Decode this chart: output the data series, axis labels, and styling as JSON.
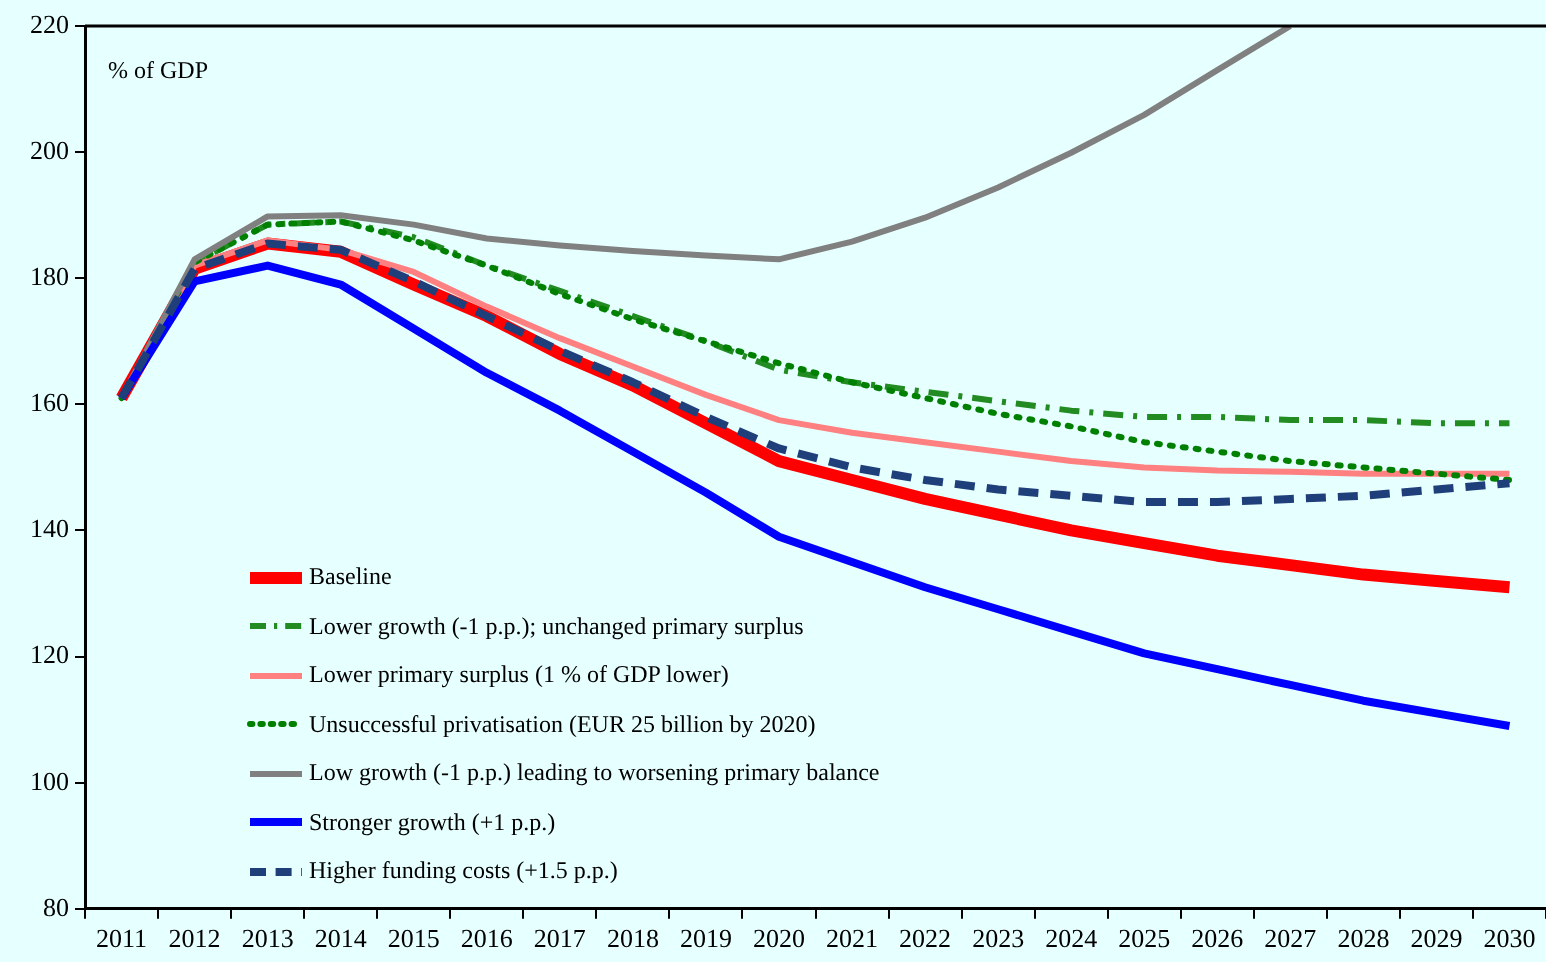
{
  "chart_data": {
    "type": "line",
    "ylabel": "% of GDP",
    "categories": [
      "2011",
      "2012",
      "2013",
      "2014",
      "2015",
      "2016",
      "2017",
      "2018",
      "2019",
      "2020",
      "2021",
      "2022",
      "2023",
      "2024",
      "2025",
      "2026",
      "2027",
      "2028",
      "2029",
      "2030"
    ],
    "ylim": [
      80,
      220
    ],
    "yticks": [
      80,
      100,
      120,
      140,
      160,
      180,
      200,
      220
    ],
    "grid": false,
    "legend": "bottom left",
    "marker": "none",
    "series": [
      {
        "name": "Baseline",
        "color": "#ff0000",
        "line_style": "solid",
        "values": [
          161,
          181.5,
          185.5,
          184.2,
          179,
          174,
          168,
          163,
          157,
          151,
          148,
          145,
          142.5,
          140,
          138,
          136,
          134.5,
          133,
          132,
          131
        ]
      },
      {
        "name": "Lower growth (-1 p.p.); unchanged primary surplus",
        "color": "#228b22",
        "line_style": "dashed",
        "values": [
          161,
          182.5,
          188.5,
          189,
          186.5,
          182,
          178,
          174,
          170,
          165.5,
          163.5,
          162,
          160.5,
          159,
          158,
          158,
          157.5,
          157.5,
          157,
          157
        ]
      },
      {
        "name": "Lower primary surplus (1 % of GDP lower)",
        "color": "#ff8080",
        "line_style": "solid",
        "values": [
          161,
          182,
          186,
          184.5,
          181,
          175.5,
          170.5,
          166,
          161.5,
          157.5,
          155.5,
          154,
          152.5,
          151,
          150,
          149.5,
          149.3,
          149,
          149,
          149
        ]
      },
      {
        "name": "Unsuccessful privatisation (EUR 25 billion by 2020)",
        "color": "#008000",
        "line_style": "dotted",
        "values": [
          161,
          182.5,
          188.5,
          189,
          186,
          182,
          177.5,
          173.5,
          170,
          166.5,
          163.5,
          161,
          158.5,
          156.5,
          154,
          152.5,
          151,
          150,
          149,
          148
        ]
      },
      {
        "name": "Low growth (-1 p.p.) leading to worsening primary balance",
        "color": "#808080",
        "line_style": "solid",
        "values": [
          161,
          183,
          189.8,
          190,
          188.5,
          186.3,
          185.2,
          184.3,
          183.6,
          183,
          185.8,
          189.6,
          194.4,
          199.9,
          205.9,
          213,
          220,
          null,
          null,
          null
        ]
      },
      {
        "name": "Stronger growth (+1 p.p.)",
        "color": "#0000ff",
        "line_style": "solid",
        "values": [
          161,
          179.5,
          182,
          179,
          172,
          165,
          159,
          152.5,
          146,
          139,
          135,
          131,
          127.5,
          124,
          120.5,
          118,
          115.5,
          113,
          111,
          109
        ]
      },
      {
        "name": "Higher funding costs (+1.5 p.p.)",
        "color": "#1f3f7a",
        "line_style": "dashed",
        "values": [
          161,
          181.5,
          185.5,
          184.5,
          179.5,
          174,
          168.5,
          163.5,
          158,
          153,
          150,
          148,
          146.5,
          145.5,
          144.5,
          144.5,
          145,
          145.5,
          146.5,
          147.5
        ]
      }
    ]
  }
}
